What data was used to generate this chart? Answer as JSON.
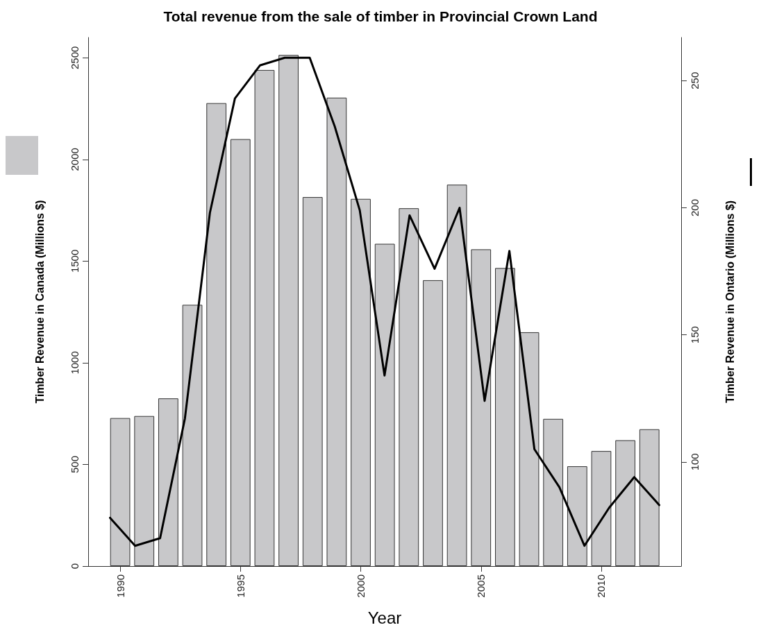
{
  "chart_data": {
    "type": "bar",
    "title": "Total revenue from the sale of timber in Provincial Crown Land",
    "xlabel": "Year",
    "ylabel": "Timber Revenue in Canada (Millions $)",
    "y2label": "Timber Revenue in Ontario (Millions $)",
    "x": [
      1990,
      1991,
      1992,
      1993,
      1994,
      1995,
      1996,
      1997,
      1998,
      1999,
      2000,
      2001,
      2002,
      2003,
      2004,
      2005,
      2006,
      2007,
      2008,
      2009,
      2010,
      2011,
      2012
    ],
    "series": [
      {
        "color": "#c8c8ca",
        "values": [
          728,
          738,
          825,
          1285,
          2277,
          2100,
          2440,
          2514,
          1815,
          2304,
          1806,
          1585,
          1760,
          1406,
          1876,
          1558,
          1466,
          1150,
          724,
          491,
          566,
          619,
          673
        ]
      },
      {
        "type": "line",
        "axis": "y2",
        "color": "#000000",
        "x": [
          1989.58,
          1990.62,
          1991.66,
          1992.69,
          1993.73,
          1994.77,
          1995.81,
          1996.84,
          1997.88,
          1998.92,
          1999.96,
          2000.99,
          2002.03,
          2003.07,
          2004.11,
          2005.15,
          2006.18,
          2007.22,
          2008.26,
          2009.3,
          2010.33,
          2011.37,
          2012.41
        ],
        "values": [
          78,
          67,
          70,
          117,
          198,
          243,
          256,
          259,
          259,
          232,
          199,
          134,
          197,
          176,
          200,
          124,
          183,
          105,
          90,
          67,
          82,
          94,
          83
        ]
      }
    ],
    "xlim": [
      1988.67,
      2013.32
    ],
    "xticks": [
      1990,
      1995,
      2000,
      2005,
      2010
    ],
    "ylim": [
      0,
      2600
    ],
    "yticks": [
      0,
      500,
      1000,
      1500,
      2000,
      2500
    ],
    "y2lim": [
      59,
      267
    ],
    "y2ticks": [
      100,
      150,
      200,
      250
    ],
    "grid": false,
    "marker": "none",
    "line_style": "solid"
  }
}
